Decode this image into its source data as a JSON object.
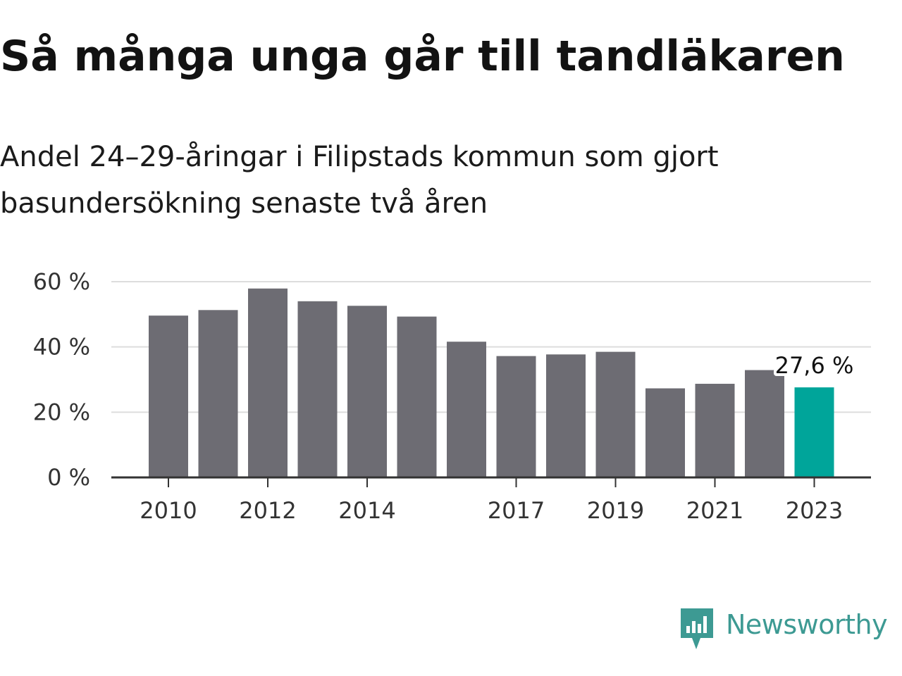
{
  "title": "Så många unga går till tandläkaren",
  "subtitle": "Andel 24–29-åringar i Filipstads kommun som gjort basundersökning senaste två åren",
  "brand": {
    "name": "Newsworthy",
    "logo_icon": "bar-chart-speech-bubble-icon",
    "color": "#3d9a93"
  },
  "colors": {
    "bar": "#6d6c73",
    "highlight": "#00a59a",
    "grid": "#dddddd",
    "axis": "#333333"
  },
  "chart_data": {
    "type": "bar",
    "title": "Så många unga går till tandläkaren",
    "subtitle": "Andel 24–29-åringar i Filipstads kommun som gjort basundersökning senaste två åren",
    "categories": [
      "2010",
      "2011",
      "2012",
      "2013",
      "2014",
      "2015",
      "2016",
      "2017",
      "2018",
      "2019",
      "2020",
      "2021",
      "2022",
      "2023"
    ],
    "values": [
      49.6,
      51.3,
      57.9,
      54.0,
      52.6,
      49.3,
      41.6,
      37.2,
      37.7,
      38.5,
      27.3,
      28.7,
      32.9,
      27.6
    ],
    "highlight_index": 13,
    "highlight_label": "27,6 %",
    "ylim": [
      0,
      60
    ],
    "yticks": [
      0,
      20,
      40,
      60
    ],
    "ytick_labels": [
      "0 %",
      "20 %",
      "40 %",
      "60 %"
    ],
    "xtick_labels": [
      "2010",
      "2012",
      "2014",
      "2017",
      "2019",
      "2021",
      "2023"
    ],
    "grid": true,
    "xlabel": "",
    "ylabel": ""
  }
}
